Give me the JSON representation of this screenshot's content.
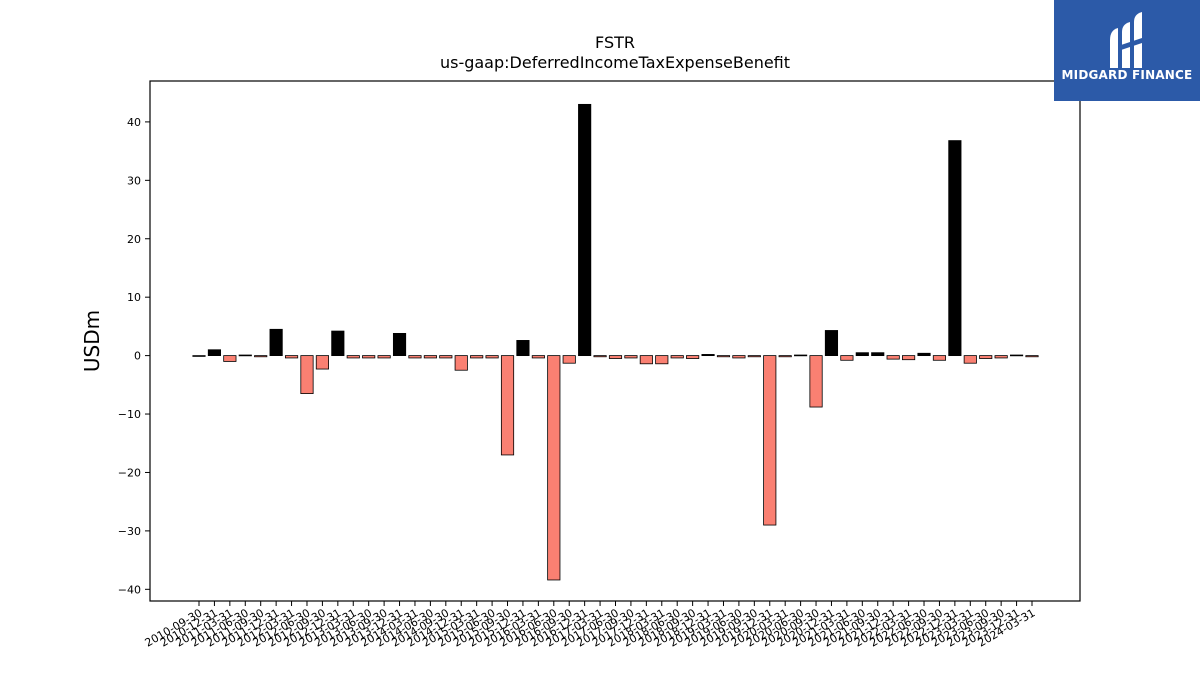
{
  "header": {
    "title": "FSTR",
    "subtitle": "us-gaap:DeferredIncomeTaxExpenseBenefit"
  },
  "logo": {
    "text": "MIDGARD FINANCE",
    "color": "#2c5aa8"
  },
  "chart_data": {
    "type": "bar",
    "title": "FSTR",
    "subtitle": "us-gaap:DeferredIncomeTaxExpenseBenefit",
    "xlabel": "",
    "ylabel": "USDm",
    "ylim": [
      -42,
      47
    ],
    "yticks": [
      -40,
      -30,
      -20,
      -10,
      0,
      10,
      20,
      30,
      40
    ],
    "grid": false,
    "colors": {
      "positive": "#000000",
      "negative": "#fa8072",
      "edge": "#000000"
    },
    "x_tick_labels": [
      "2010-09-30",
      "2010-12-31",
      "2011-03-31",
      "2011-06-30",
      "2011-09-30",
      "2011-12-31",
      "2012-03-31",
      "2012-06-30",
      "2012-09-30",
      "2012-12-31",
      "2013-03-31",
      "2013-06-30",
      "2013-09-30",
      "2013-12-31",
      "2014-03-31",
      "2014-06-30",
      "2014-09-30",
      "2014-12-31",
      "2015-03-31",
      "2015-06-30",
      "2015-09-30",
      "2015-12-31",
      "2016-03-31",
      "2016-06-30",
      "2016-09-30",
      "2016-12-31",
      "2017-03-31",
      "2017-06-30",
      "2017-09-30",
      "2017-12-31",
      "2018-03-31",
      "2018-06-30",
      "2018-09-30",
      "2018-12-31",
      "2019-03-31",
      "2019-06-30",
      "2019-09-30",
      "2019-12-31",
      "2020-03-31",
      "2020-06-30",
      "2020-09-30",
      "2020-12-31",
      "2021-03-31",
      "2021-06-30",
      "2021-09-30",
      "2021-12-31",
      "2022-03-31",
      "2022-06-30",
      "2022-09-30",
      "2022-12-31",
      "2023-03-31",
      "2023-06-30",
      "2023-09-30",
      "2023-12-31",
      "2024-03-31"
    ],
    "values": [
      -0.1,
      1.0,
      -1.0,
      0.1,
      -0.2,
      4.5,
      -0.4,
      -6.5,
      -2.3,
      4.2,
      -0.4,
      -0.4,
      -0.4,
      3.8,
      -0.4,
      -0.4,
      -0.4,
      -2.5,
      -0.4,
      -0.4,
      -17.0,
      2.6,
      -0.4,
      -38.4,
      -1.3,
      43.0,
      -0.2,
      -0.5,
      -0.4,
      -1.4,
      -1.4,
      -0.4,
      -0.5,
      0.2,
      -0.2,
      -0.4,
      -0.2,
      -29.0,
      -0.2,
      0.1,
      -8.8,
      4.3,
      -0.8,
      0.5,
      0.5,
      -0.6,
      -0.7,
      0.4,
      -0.8,
      36.8,
      -1.3,
      -0.5,
      -0.4,
      0.1,
      -0.2
    ]
  }
}
